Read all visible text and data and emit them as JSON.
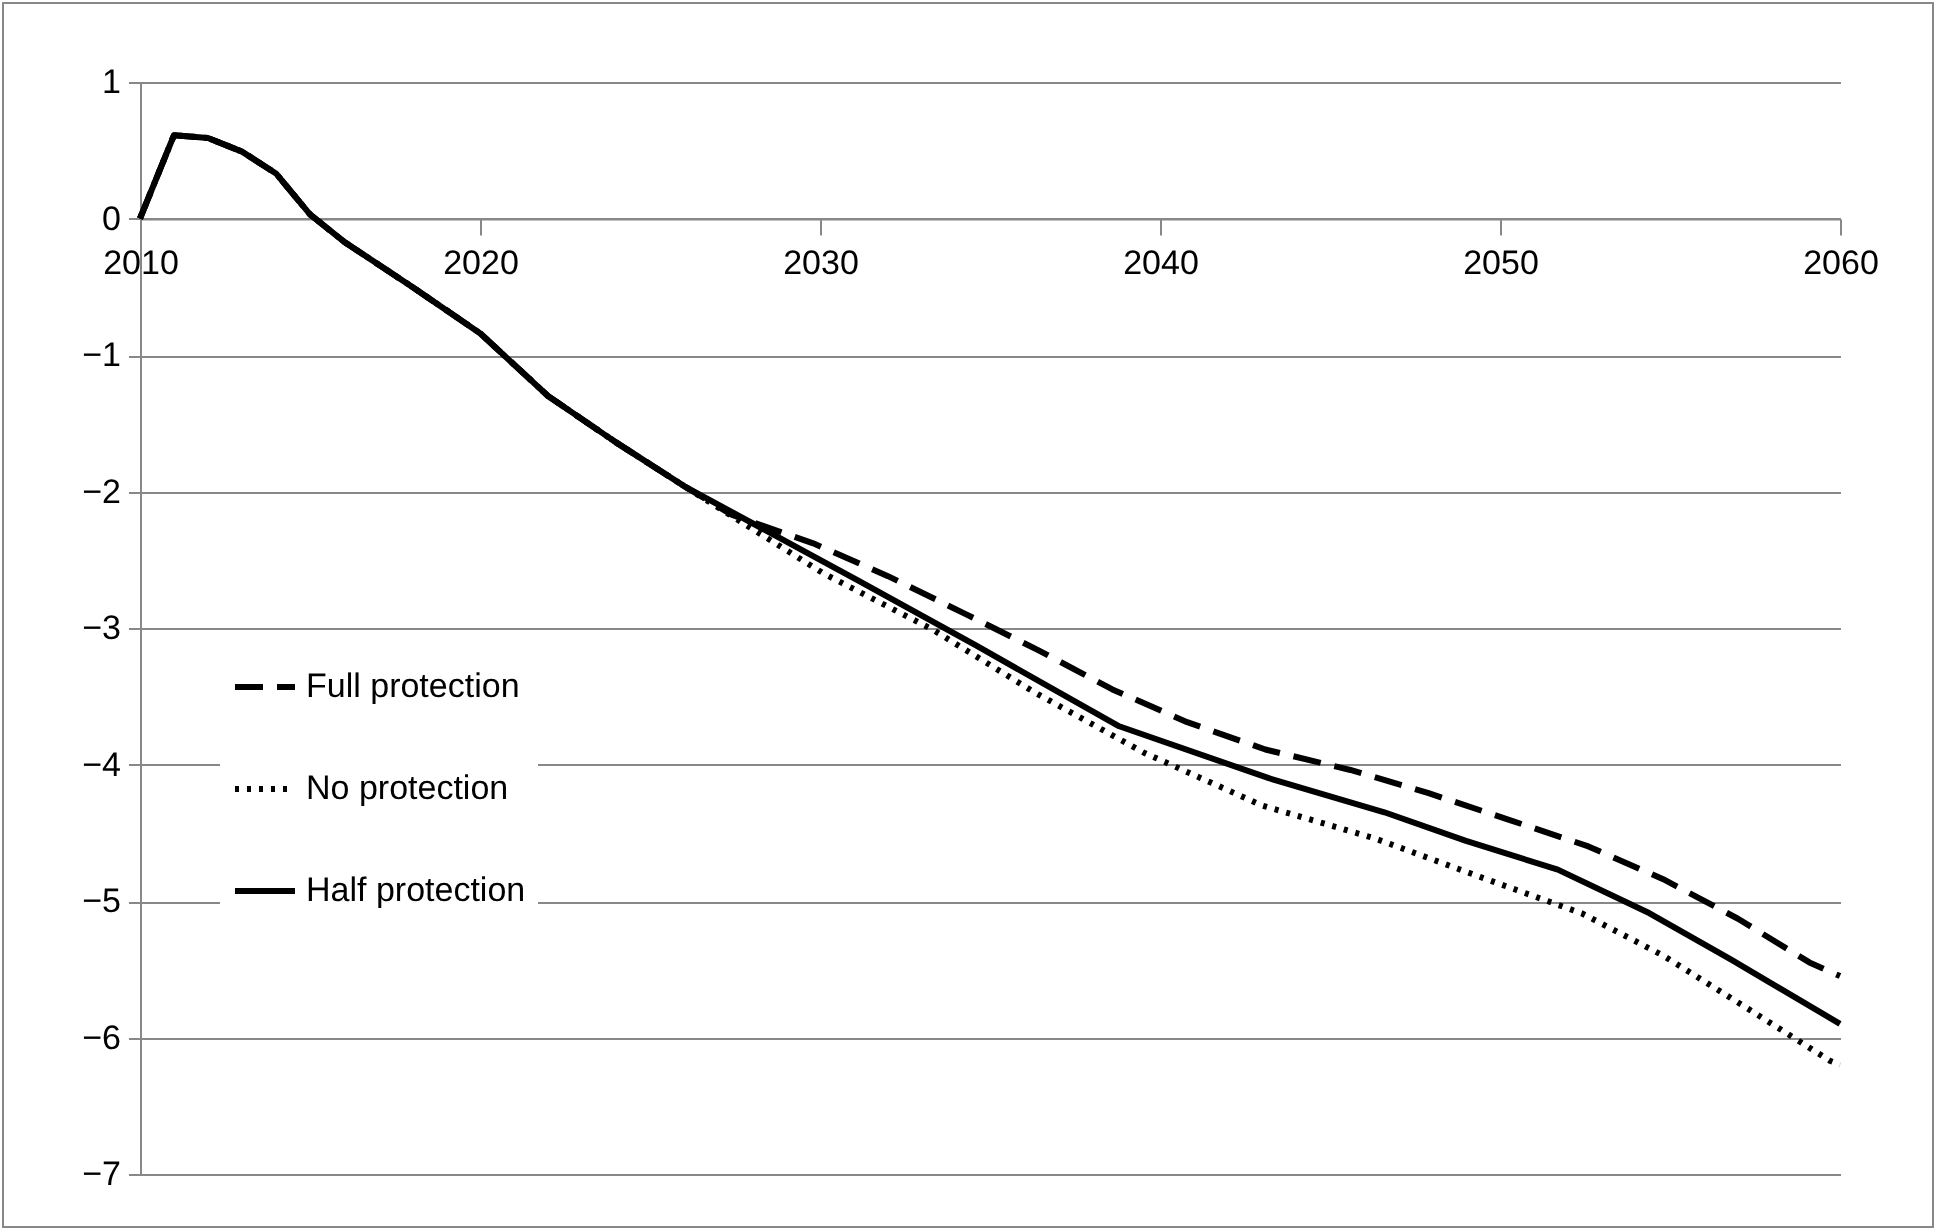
{
  "chart_data": {
    "type": "line",
    "xlim": [
      2010,
      2060
    ],
    "xticks": [
      2010,
      2020,
      2030,
      2040,
      2050,
      2060
    ],
    "ylim": [
      -7,
      1
    ],
    "yticks": [
      -7,
      -6,
      -5,
      -4,
      -3,
      -2,
      -1,
      0,
      1
    ],
    "grid": "y",
    "legend": "bottom left",
    "marker": "none",
    "series": [
      {
        "name": "Full protection",
        "color": "#000000",
        "line_style": "dashed",
        "x": [
          2010,
          2011,
          2012,
          2013,
          2014,
          2015,
          2016,
          2018,
          2020,
          2022,
          2024,
          2026,
          2027.4,
          2029.8,
          2032,
          2034.3,
          2036.4,
          2038.6,
          2040.8,
          2043.1,
          2045.6,
          2047.9,
          2050.2,
          2052.6,
          2054.8,
          2057,
          2059.1,
          2060
        ],
        "values": [
          0,
          0.61,
          0.59,
          0.49,
          0.33,
          0.03,
          -0.17,
          -0.5,
          -0.84,
          -1.3,
          -1.64,
          -1.96,
          -2.17,
          -2.38,
          -2.62,
          -2.9,
          -3.16,
          -3.45,
          -3.69,
          -3.89,
          -4.04,
          -4.21,
          -4.4,
          -4.6,
          -4.84,
          -5.13,
          -5.45,
          -5.55
        ]
      },
      {
        "name": "No protection",
        "color": "#000000",
        "line_style": "dotted",
        "x": [
          2010,
          2011,
          2012,
          2013,
          2014,
          2015,
          2016,
          2018,
          2020,
          2022,
          2024,
          2026,
          2030.1,
          2033.3,
          2036.3,
          2039.5,
          2043,
          2046.3,
          2049.6,
          2052.4,
          2054.8,
          2057.3,
          2059.7,
          2060
        ],
        "values": [
          0,
          0.61,
          0.59,
          0.49,
          0.33,
          0.03,
          -0.17,
          -0.5,
          -0.84,
          -1.3,
          -1.64,
          -1.96,
          -2.6,
          -3.01,
          -3.47,
          -3.91,
          -4.3,
          -4.54,
          -4.84,
          -5.09,
          -5.4,
          -5.79,
          -6.17,
          -6.2
        ]
      },
      {
        "name": "Half protection",
        "color": "#000000",
        "line_style": "solid",
        "x": [
          2010,
          2011,
          2012,
          2013,
          2014,
          2015,
          2016,
          2018,
          2020,
          2022,
          2024,
          2026,
          2031.1,
          2034.6,
          2038.8,
          2043.2,
          2046.6,
          2049,
          2051.7,
          2054.4,
          2056.8,
          2060
        ],
        "values": [
          0,
          0.61,
          0.59,
          0.49,
          0.33,
          0.03,
          -0.17,
          -0.5,
          -0.84,
          -1.3,
          -1.64,
          -1.96,
          -2.65,
          -3.13,
          -3.72,
          -4.1,
          -4.35,
          -4.56,
          -4.77,
          -5.09,
          -5.43,
          -5.9
        ]
      }
    ]
  }
}
